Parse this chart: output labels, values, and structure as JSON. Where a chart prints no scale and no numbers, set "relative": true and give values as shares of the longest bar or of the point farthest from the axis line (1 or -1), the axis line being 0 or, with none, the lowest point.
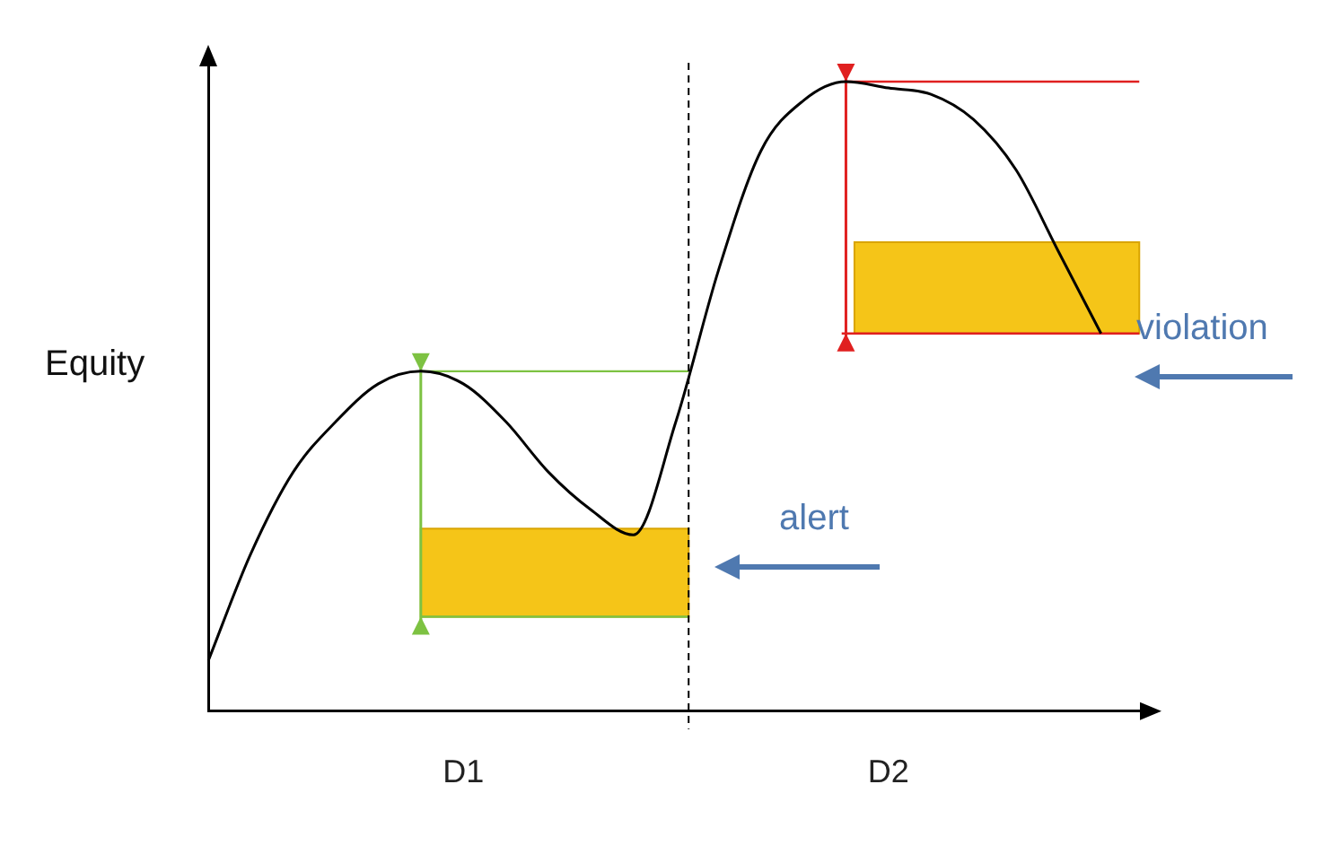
{
  "chart_data": {
    "type": "line",
    "relative": true,
    "ylabel": "Equity",
    "color": "#000000",
    "marker": "none",
    "categories": [
      null,
      null,
      null,
      null,
      null,
      null,
      "D1",
      null,
      null,
      null,
      null,
      null,
      null,
      null,
      null,
      null,
      "D2",
      null,
      null,
      null,
      null,
      null,
      null
    ],
    "values": [
      0.08,
      0.25,
      0.38,
      0.46,
      0.52,
      0.54,
      0.52,
      0.46,
      0.38,
      0.32,
      0.28,
      0.46,
      0.7,
      0.89,
      0.97,
      1,
      0.99,
      0.98,
      0.94,
      0.86,
      0.73,
      0.6,
      null
    ],
    "annotations": [
      "alert",
      "violation"
    ]
  }
}
